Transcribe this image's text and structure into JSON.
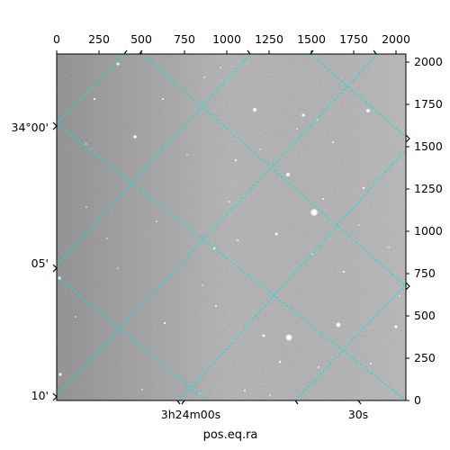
{
  "plot": {
    "xlabel": "pos.eq.ra",
    "pixel_ticks_top": [
      "0",
      "250",
      "500",
      "750",
      "1000",
      "1250",
      "1500",
      "1750",
      "2000"
    ],
    "pixel_ticks_right": [
      "0",
      "250",
      "500",
      "750",
      "1000",
      "1250",
      "1500",
      "1750",
      "2000"
    ],
    "dec_ticks_left": [
      "34°00'",
      "05'",
      "10'"
    ],
    "ra_ticks_bottom": [
      "3h24m00s",
      "30s"
    ],
    "grid_color": "#00e5e5",
    "background": "gray noise star field",
    "star_color": "#ffffff"
  }
}
